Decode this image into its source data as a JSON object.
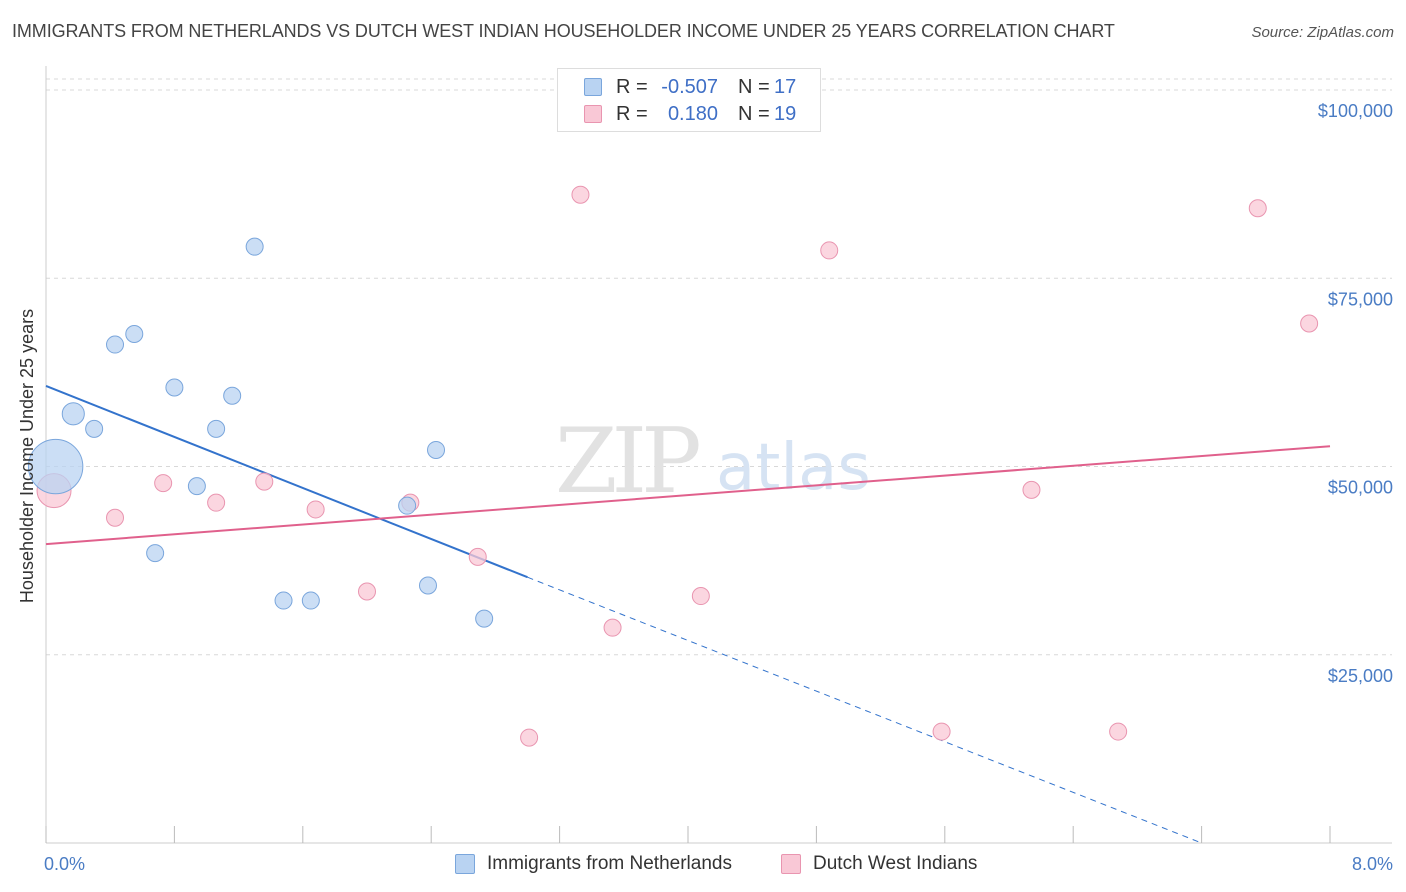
{
  "title": "IMMIGRANTS FROM NETHERLANDS VS DUTCH WEST INDIAN HOUSEHOLDER INCOME UNDER 25 YEARS CORRELATION CHART",
  "source": "Source: ZipAtlas.com",
  "watermark": {
    "zip": "ZIP",
    "atlas": "atlas"
  },
  "colors": {
    "blue_fill": "#b9d3f2",
    "blue_stroke": "#7aa6dc",
    "blue_line": "#3373cc",
    "pink_fill": "#f9c8d6",
    "pink_stroke": "#e995b0",
    "pink_line": "#e0608c",
    "grid": "#d8d8d8",
    "tick_text": "#4a7cc4"
  },
  "legend": {
    "rows": [
      {
        "r_label": "R =",
        "r_value": "-0.507",
        "n_label": "N =",
        "n_value": "17"
      },
      {
        "r_label": "R =",
        "r_value": "0.180",
        "n_label": "N =",
        "n_value": "19"
      }
    ]
  },
  "bottom_legend": [
    "Immigrants from Netherlands",
    "Dutch West Indians"
  ],
  "chart_data": {
    "type": "scatter",
    "title": "IMMIGRANTS FROM NETHERLANDS VS DUTCH WEST INDIAN HOUSEHOLDER INCOME UNDER 25 YEARS CORRELATION CHART",
    "xlabel": "",
    "ylabel": "Householder Income Under 25 years",
    "xlim": [
      0,
      8
    ],
    "ylim": [
      0,
      102000
    ],
    "x_ticks": [
      {
        "value": 0,
        "label": "0.0%"
      },
      {
        "value": 8,
        "label": "8.0%"
      }
    ],
    "y_ticks": [
      {
        "value": 25000,
        "label": "$25,000"
      },
      {
        "value": 50000,
        "label": "$50,000"
      },
      {
        "value": 75000,
        "label": "$75,000"
      },
      {
        "value": 100000,
        "label": "$100,000"
      }
    ],
    "grid": true,
    "legend_position": "top-center",
    "series": [
      {
        "name": "Immigrants from Netherlands",
        "color": "blue",
        "points": [
          {
            "x": 0.06,
            "y": 50000,
            "size": 3.2
          },
          {
            "x": 0.17,
            "y": 57000,
            "size": 1.3
          },
          {
            "x": 0.3,
            "y": 55000,
            "size": 1
          },
          {
            "x": 0.43,
            "y": 66200,
            "size": 1
          },
          {
            "x": 0.55,
            "y": 67600,
            "size": 1
          },
          {
            "x": 0.68,
            "y": 38500,
            "size": 1
          },
          {
            "x": 0.8,
            "y": 60500,
            "size": 1
          },
          {
            "x": 0.94,
            "y": 47400,
            "size": 1
          },
          {
            "x": 1.06,
            "y": 55000,
            "size": 1
          },
          {
            "x": 1.16,
            "y": 59400,
            "size": 1
          },
          {
            "x": 1.3,
            "y": 79200,
            "size": 1
          },
          {
            "x": 1.48,
            "y": 32200,
            "size": 1
          },
          {
            "x": 1.65,
            "y": 32200,
            "size": 1
          },
          {
            "x": 2.25,
            "y": 44800,
            "size": 1
          },
          {
            "x": 2.38,
            "y": 34200,
            "size": 1
          },
          {
            "x": 2.43,
            "y": 52200,
            "size": 1
          },
          {
            "x": 2.73,
            "y": 29800,
            "size": 1
          }
        ],
        "trend": {
          "x0": 0,
          "y0": 60700,
          "x1": 3.0,
          "y1": 35300,
          "dash_to_x": 7.2,
          "dash_to_y": 0
        }
      },
      {
        "name": "Dutch West Indians",
        "color": "pink",
        "points": [
          {
            "x": 0.05,
            "y": 46800,
            "size": 2.0
          },
          {
            "x": 0.43,
            "y": 43200,
            "size": 1
          },
          {
            "x": 0.73,
            "y": 47800,
            "size": 1
          },
          {
            "x": 1.06,
            "y": 45200,
            "size": 1
          },
          {
            "x": 1.36,
            "y": 48000,
            "size": 1
          },
          {
            "x": 1.68,
            "y": 44300,
            "size": 1
          },
          {
            "x": 2.0,
            "y": 33400,
            "size": 1
          },
          {
            "x": 2.27,
            "y": 45200,
            "size": 1
          },
          {
            "x": 2.69,
            "y": 38000,
            "size": 1
          },
          {
            "x": 3.01,
            "y": 14000,
            "size": 1
          },
          {
            "x": 3.33,
            "y": 86100,
            "size": 1
          },
          {
            "x": 3.53,
            "y": 28600,
            "size": 1
          },
          {
            "x": 4.08,
            "y": 32800,
            "size": 1
          },
          {
            "x": 4.88,
            "y": 78700,
            "size": 1
          },
          {
            "x": 5.58,
            "y": 14800,
            "size": 1
          },
          {
            "x": 6.14,
            "y": 46900,
            "size": 1
          },
          {
            "x": 6.68,
            "y": 14800,
            "size": 1
          },
          {
            "x": 7.55,
            "y": 84300,
            "size": 1
          },
          {
            "x": 7.87,
            "y": 69000,
            "size": 1
          }
        ],
        "trend": {
          "x0": 0,
          "y0": 39700,
          "x1": 8.0,
          "y1": 52700
        }
      }
    ]
  }
}
